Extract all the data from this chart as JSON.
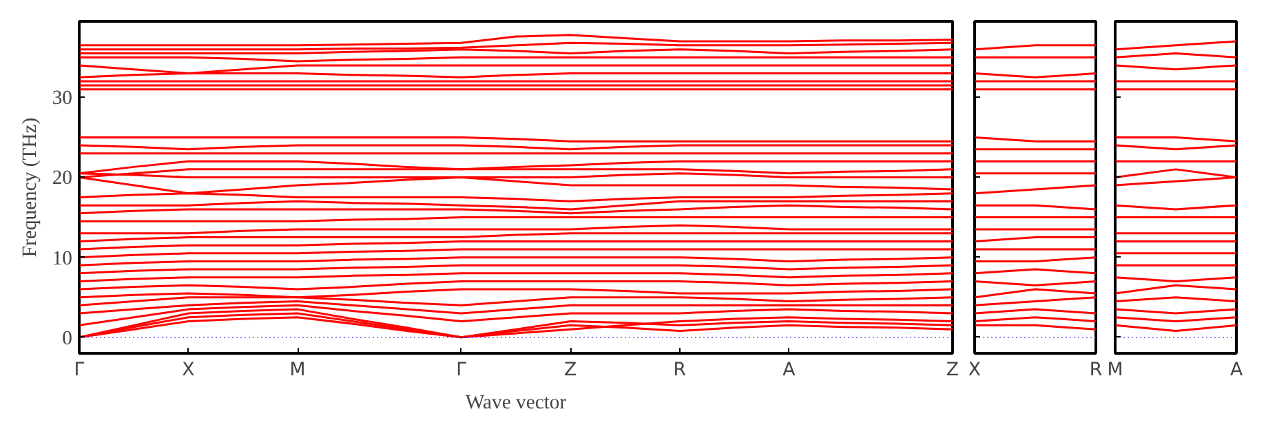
{
  "chart_data": [
    {
      "type": "line",
      "xlabel": "Wave vector",
      "ylabel": "Frequency (THz)",
      "categories": [
        "Γ",
        null,
        "X",
        null,
        "M",
        null,
        null,
        "Γ",
        null,
        "Z",
        null,
        "R",
        null,
        "A",
        null,
        null,
        "Z"
      ],
      "ylim": [
        -2,
        39.5
      ],
      "yticks": [
        0,
        10,
        20,
        30
      ],
      "ref_lines": [
        {
          "axis": "y",
          "value": 0,
          "color": "#0000ff",
          "line_style": "dotted"
        }
      ],
      "series": [
        {
          "color": "#ff0000",
          "values": [
            0,
            1,
            2,
            2.3,
            2.5,
            1.7,
            0.8,
            0,
            0.8,
            1.5,
            1.2,
            0.8,
            1.2,
            1.5,
            1.3,
            1.2,
            1
          ]
        },
        {
          "color": "#ff0000",
          "values": [
            0,
            1.3,
            2.5,
            2.8,
            3,
            2,
            1,
            0,
            1,
            2,
            1.8,
            1.5,
            1.8,
            2,
            1.8,
            1.7,
            1.5
          ]
        },
        {
          "color": "#ff0000",
          "values": [
            0,
            1.5,
            3,
            3.3,
            3.5,
            2.3,
            1.2,
            0,
            0.5,
            1,
            1.5,
            2,
            2.3,
            2.5,
            2.3,
            2.2,
            2
          ]
        },
        {
          "color": "#ff0000",
          "values": [
            1.5,
            2.5,
            3.5,
            3.8,
            4,
            3.3,
            2.7,
            2,
            2.5,
            3,
            3,
            3,
            3.3,
            3.5,
            3.3,
            3.2,
            3
          ]
        },
        {
          "color": "#ff0000",
          "values": [
            3,
            3.5,
            4,
            4.3,
            4.5,
            4,
            3.5,
            3,
            3.5,
            4,
            4,
            4,
            4,
            4,
            4,
            4,
            4
          ]
        },
        {
          "color": "#ff0000",
          "values": [
            4,
            4.5,
            5,
            5,
            5,
            4.7,
            4.3,
            4,
            4.5,
            5,
            5,
            5,
            4.8,
            4.5,
            4.7,
            4.8,
            5
          ]
        },
        {
          "color": "#ff0000",
          "values": [
            5,
            5.3,
            5.5,
            5.3,
            5,
            5.3,
            5.7,
            6,
            6,
            6,
            5.8,
            5.5,
            5.5,
            5.5,
            5.7,
            5.8,
            6
          ]
        },
        {
          "color": "#ff0000",
          "values": [
            6,
            6.3,
            6.5,
            6.3,
            6,
            6.3,
            6.7,
            7,
            7,
            7,
            7,
            7,
            6.8,
            6.5,
            6.7,
            6.8,
            7
          ]
        },
        {
          "color": "#ff0000",
          "values": [
            7,
            7.3,
            7.5,
            7.5,
            7.5,
            7.7,
            7.8,
            8,
            8,
            8,
            8,
            8,
            7.8,
            7.5,
            7.7,
            7.8,
            8
          ]
        },
        {
          "color": "#ff0000",
          "values": [
            8,
            8.3,
            8.5,
            8.5,
            8.5,
            8.7,
            8.8,
            9,
            9,
            9,
            9,
            9,
            8.8,
            8.5,
            8.7,
            8.8,
            9
          ]
        },
        {
          "color": "#ff0000",
          "values": [
            9,
            9.3,
            9.5,
            9.5,
            9.5,
            9.7,
            9.8,
            10,
            10,
            10,
            10,
            10,
            9.8,
            9.5,
            9.7,
            9.8,
            10
          ]
        },
        {
          "color": "#ff0000",
          "values": [
            10,
            10.3,
            10.5,
            10.5,
            10.5,
            10.7,
            10.8,
            11,
            11,
            11,
            11,
            11,
            11,
            11,
            11,
            11,
            11
          ]
        },
        {
          "color": "#ff0000",
          "values": [
            11,
            11.3,
            11.5,
            11.5,
            11.5,
            11.7,
            11.8,
            12,
            12,
            12,
            12,
            12,
            12,
            12,
            12,
            12,
            12
          ]
        },
        {
          "color": "#ff0000",
          "values": [
            12,
            12.3,
            12.5,
            12.5,
            12.5,
            12.5,
            12.5,
            12.5,
            12.8,
            13,
            13,
            13,
            13,
            13,
            13,
            13,
            13
          ]
        },
        {
          "color": "#ff0000",
          "values": [
            13,
            13,
            13,
            13.3,
            13.5,
            13.5,
            13.5,
            13.5,
            13.5,
            13.5,
            13.8,
            14,
            13.8,
            13.5,
            13.5,
            13.5,
            13.5
          ]
        },
        {
          "color": "#ff0000",
          "values": [
            14.5,
            14.5,
            14.5,
            14.5,
            14.5,
            14.7,
            14.8,
            15,
            15,
            15,
            15,
            15,
            15,
            15,
            15,
            15,
            15
          ]
        },
        {
          "color": "#ff0000",
          "values": [
            15.5,
            15.8,
            16,
            16,
            16,
            16,
            16,
            16,
            15.8,
            15.5,
            15.8,
            16,
            16.3,
            16.5,
            16.3,
            16.2,
            16
          ]
        },
        {
          "color": "#ff0000",
          "values": [
            16.5,
            16.5,
            16.5,
            16.8,
            17,
            16.8,
            16.7,
            16.5,
            16.3,
            16,
            16.5,
            17,
            17,
            17,
            17,
            17,
            17
          ]
        },
        {
          "color": "#ff0000",
          "values": [
            17.5,
            17.8,
            18,
            17.8,
            17.5,
            17.5,
            17.5,
            17.5,
            17.3,
            17,
            17.3,
            17.5,
            17.5,
            17.5,
            17.7,
            17.8,
            18
          ]
        },
        {
          "color": "#ff0000",
          "values": [
            20,
            19,
            18,
            18.5,
            19,
            19.3,
            19.7,
            20,
            19.5,
            19,
            19,
            19,
            19,
            19,
            18.8,
            18.7,
            18.5
          ]
        },
        {
          "color": "#ff0000",
          "values": [
            20.5,
            20.3,
            20,
            20,
            20,
            20,
            20,
            20,
            20,
            20,
            20.3,
            20.5,
            20.3,
            20,
            20,
            20,
            20
          ]
        },
        {
          "color": "#ff0000",
          "values": [
            20,
            20.5,
            21,
            21,
            21,
            21,
            21,
            21,
            21,
            21,
            21,
            21,
            20.8,
            20.5,
            20.7,
            20.8,
            21
          ]
        },
        {
          "color": "#ff0000",
          "values": [
            20.5,
            21.3,
            22,
            22,
            22,
            21.7,
            21.3,
            21,
            21.3,
            21.5,
            21.8,
            22,
            22,
            22,
            22,
            22,
            22
          ]
        },
        {
          "color": "#ff0000",
          "values": [
            23,
            23,
            23,
            23,
            23,
            23,
            23,
            23,
            23,
            23,
            23,
            23,
            23,
            23,
            23,
            23,
            23
          ]
        },
        {
          "color": "#ff0000",
          "values": [
            24,
            23.8,
            23.5,
            23.8,
            24,
            24,
            24,
            24,
            23.8,
            23.5,
            23.8,
            24,
            24,
            24,
            24,
            24,
            24
          ]
        },
        {
          "color": "#ff0000",
          "values": [
            25,
            25,
            25,
            25,
            25,
            25,
            25,
            25,
            24.8,
            24.5,
            24.5,
            24.5,
            24.5,
            24.5,
            24.5,
            24.5,
            24.5
          ]
        },
        {
          "color": "#ff0000",
          "values": [
            31,
            31,
            31,
            31,
            31,
            31,
            31,
            31,
            31,
            31,
            31,
            31,
            31,
            31,
            31,
            31,
            31
          ]
        },
        {
          "color": "#ff0000",
          "values": [
            31.5,
            31.5,
            31.5,
            31.5,
            31.5,
            31.5,
            31.5,
            31.5,
            31.5,
            31.5,
            31.5,
            31.5,
            31.5,
            31.5,
            31.5,
            31.5,
            31.5
          ]
        },
        {
          "color": "#ff0000",
          "values": [
            32,
            32,
            32,
            32,
            32,
            32,
            32,
            32,
            32,
            32,
            32,
            32,
            32,
            32,
            32,
            32,
            32
          ]
        },
        {
          "color": "#ff0000",
          "values": [
            32.5,
            32.8,
            33,
            33,
            33,
            32.8,
            32.7,
            32.5,
            32.8,
            33,
            33,
            33,
            33,
            33,
            33,
            33,
            33
          ]
        },
        {
          "color": "#ff0000",
          "values": [
            34,
            33.5,
            33,
            33.5,
            34,
            34,
            34,
            34,
            34,
            34,
            34,
            34,
            34,
            34,
            34,
            34,
            34
          ]
        },
        {
          "color": "#ff0000",
          "values": [
            35,
            35,
            35,
            34.8,
            34.5,
            34.7,
            34.8,
            35,
            35,
            35,
            35,
            35,
            35,
            35,
            35,
            35,
            35
          ]
        },
        {
          "color": "#ff0000",
          "values": [
            35.5,
            35.5,
            35.5,
            35.5,
            35.5,
            35.7,
            35.8,
            36,
            35.8,
            35.5,
            35.8,
            36,
            35.8,
            35.5,
            35.7,
            35.8,
            36
          ]
        },
        {
          "color": "#ff0000",
          "values": [
            36,
            36,
            36,
            36,
            36,
            36.1,
            36.1,
            36.2,
            36.5,
            36.8,
            36.7,
            36.5,
            36.5,
            36.5,
            36.6,
            36.7,
            36.8
          ]
        },
        {
          "color": "#ff0000",
          "values": [
            36.5,
            36.5,
            36.5,
            36.5,
            36.5,
            36.6,
            36.7,
            36.8,
            37.6,
            37.8,
            37.4,
            37,
            37,
            37,
            37.1,
            37.1,
            37.2
          ]
        }
      ]
    },
    {
      "type": "line",
      "tick_labels": "x",
      "categories": [
        "X",
        null,
        "R"
      ],
      "ylim": [
        -2,
        39.5
      ],
      "yticks": [
        0,
        10,
        20,
        30
      ],
      "ref_lines": [
        {
          "axis": "y",
          "value": 0,
          "color": "#0000ff",
          "line_style": "dotted"
        }
      ],
      "series": [
        {
          "color": "#ff0000",
          "values": [
            1.5,
            1.5,
            1
          ]
        },
        {
          "color": "#ff0000",
          "values": [
            2,
            2.5,
            2
          ]
        },
        {
          "color": "#ff0000",
          "values": [
            3,
            3.5,
            3
          ]
        },
        {
          "color": "#ff0000",
          "values": [
            4,
            4.5,
            5
          ]
        },
        {
          "color": "#ff0000",
          "values": [
            5,
            6,
            5.5
          ]
        },
        {
          "color": "#ff0000",
          "values": [
            7,
            6.5,
            7
          ]
        },
        {
          "color": "#ff0000",
          "values": [
            8,
            8.5,
            8
          ]
        },
        {
          "color": "#ff0000",
          "values": [
            9.5,
            9.5,
            10
          ]
        },
        {
          "color": "#ff0000",
          "values": [
            11,
            11,
            11
          ]
        },
        {
          "color": "#ff0000",
          "values": [
            12,
            12.5,
            12.5
          ]
        },
        {
          "color": "#ff0000",
          "values": [
            13.5,
            13.5,
            13.5
          ]
        },
        {
          "color": "#ff0000",
          "values": [
            15,
            15,
            15
          ]
        },
        {
          "color": "#ff0000",
          "values": [
            16.5,
            16.5,
            16
          ]
        },
        {
          "color": "#ff0000",
          "values": [
            18,
            18.5,
            19
          ]
        },
        {
          "color": "#ff0000",
          "values": [
            20.5,
            20.5,
            20.5
          ]
        },
        {
          "color": "#ff0000",
          "values": [
            22,
            22,
            22
          ]
        },
        {
          "color": "#ff0000",
          "values": [
            23.5,
            23.5,
            23.5
          ]
        },
        {
          "color": "#ff0000",
          "values": [
            25,
            24.5,
            24.5
          ]
        },
        {
          "color": "#ff0000",
          "values": [
            31,
            31,
            31
          ]
        },
        {
          "color": "#ff0000",
          "values": [
            32,
            32,
            32
          ]
        },
        {
          "color": "#ff0000",
          "values": [
            33,
            32.5,
            33
          ]
        },
        {
          "color": "#ff0000",
          "values": [
            35,
            35,
            35
          ]
        },
        {
          "color": "#ff0000",
          "values": [
            36,
            36.5,
            36.5
          ]
        }
      ]
    },
    {
      "type": "line",
      "tick_labels": "x",
      "categories": [
        "M",
        null,
        "A"
      ],
      "ylim": [
        -2,
        39.5
      ],
      "yticks": [
        0,
        10,
        20,
        30
      ],
      "ref_lines": [
        {
          "axis": "y",
          "value": 0,
          "color": "#0000ff",
          "line_style": "dotted"
        }
      ],
      "series": [
        {
          "color": "#ff0000",
          "values": [
            1.5,
            0.8,
            1.5
          ]
        },
        {
          "color": "#ff0000",
          "values": [
            2.5,
            2,
            2.5
          ]
        },
        {
          "color": "#ff0000",
          "values": [
            3.5,
            3,
            3.5
          ]
        },
        {
          "color": "#ff0000",
          "values": [
            4.5,
            5,
            4.5
          ]
        },
        {
          "color": "#ff0000",
          "values": [
            5.5,
            6.5,
            6
          ]
        },
        {
          "color": "#ff0000",
          "values": [
            7.5,
            7,
            7.5
          ]
        },
        {
          "color": "#ff0000",
          "values": [
            9,
            9,
            9
          ]
        },
        {
          "color": "#ff0000",
          "values": [
            10.5,
            10.5,
            10.5
          ]
        },
        {
          "color": "#ff0000",
          "values": [
            12,
            12,
            12
          ]
        },
        {
          "color": "#ff0000",
          "values": [
            13,
            13,
            13
          ]
        },
        {
          "color": "#ff0000",
          "values": [
            15,
            15,
            15
          ]
        },
        {
          "color": "#ff0000",
          "values": [
            16.5,
            16,
            16.5
          ]
        },
        {
          "color": "#ff0000",
          "values": [
            19,
            19.5,
            20
          ]
        },
        {
          "color": "#ff0000",
          "values": [
            20,
            21,
            20
          ]
        },
        {
          "color": "#ff0000",
          "values": [
            22,
            22,
            22
          ]
        },
        {
          "color": "#ff0000",
          "values": [
            24,
            23.5,
            24
          ]
        },
        {
          "color": "#ff0000",
          "values": [
            25,
            25,
            24.5
          ]
        },
        {
          "color": "#ff0000",
          "values": [
            31,
            31,
            31
          ]
        },
        {
          "color": "#ff0000",
          "values": [
            32,
            32,
            32
          ]
        },
        {
          "color": "#ff0000",
          "values": [
            34,
            33.5,
            34
          ]
        },
        {
          "color": "#ff0000",
          "values": [
            35,
            35.5,
            35
          ]
        },
        {
          "color": "#ff0000",
          "values": [
            36,
            36.5,
            37
          ]
        }
      ]
    }
  ]
}
